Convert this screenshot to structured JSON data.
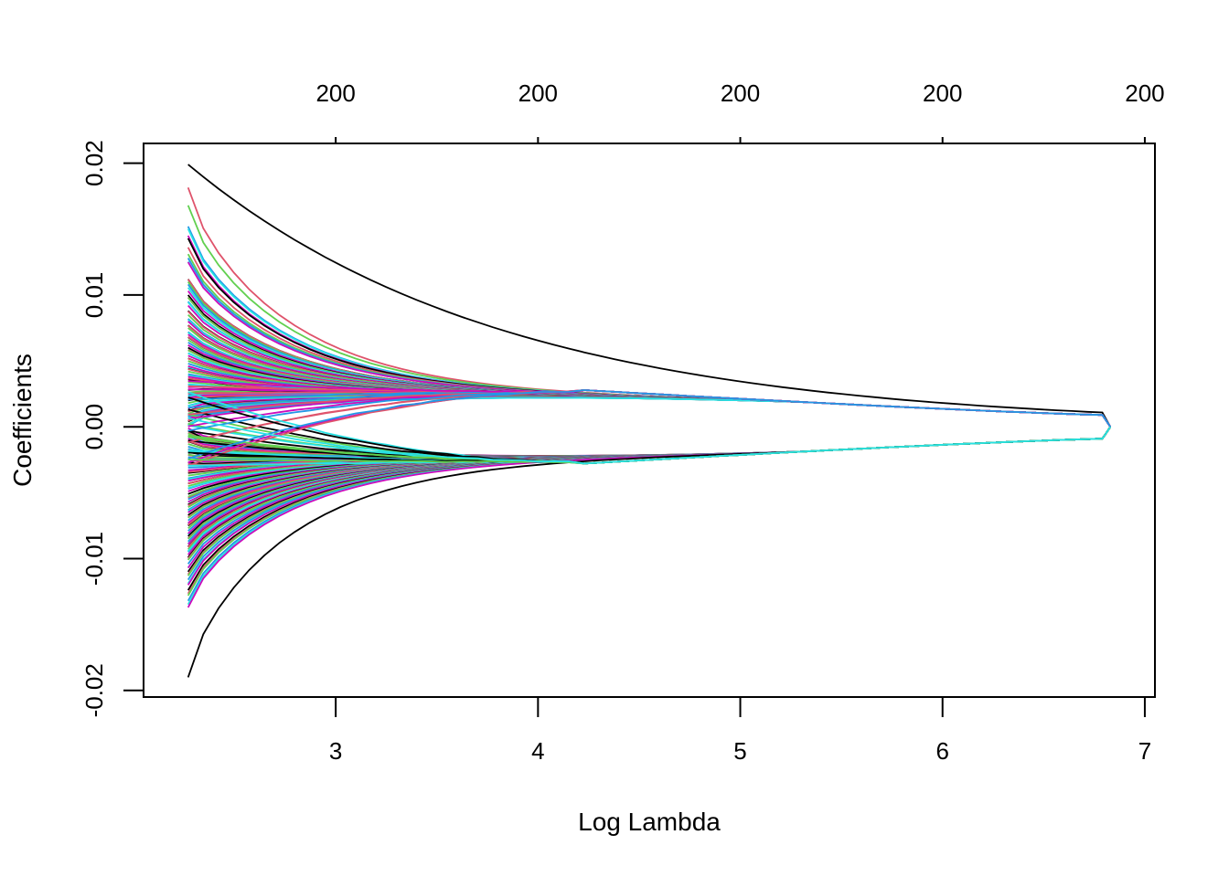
{
  "chart_data": {
    "type": "line",
    "title": "",
    "xlabel": "Log Lambda",
    "ylabel": "Coefficients",
    "xlim": [
      2.05,
      7.05
    ],
    "ylim": [
      -0.0205,
      0.0215
    ],
    "x_ticks": [
      "3",
      "4",
      "5",
      "6",
      "7"
    ],
    "x_tick_values": [
      3,
      4,
      5,
      6,
      7
    ],
    "y_ticks": [
      "-0.02",
      "-0.01",
      "0.00",
      "0.01",
      "0.02"
    ],
    "y_tick_values": [
      -0.02,
      -0.01,
      0.0,
      0.01,
      0.02
    ],
    "top_ticks": [
      "200",
      "200",
      "200",
      "200",
      "200"
    ],
    "top_tick_values": [
      3,
      4,
      5,
      6,
      7
    ],
    "grid": false,
    "legend": "none",
    "x_range_of_paths": [
      2.27,
      6.83
    ],
    "palette": [
      "#000000",
      "#DF536B",
      "#61D04F",
      "#2297E6",
      "#28E2E5",
      "#CD0BBC"
    ],
    "paths_summary": {
      "count": 200,
      "start_coefficients_at_min_log_lambda": [
        0.0199,
        0.0168,
        0.0152,
        0.0145,
        0.0143,
        0.0131,
        0.0128,
        0.0125,
        0.0112,
        0.011,
        0.0108,
        0.0103,
        0.01,
        0.0098,
        0.0095,
        0.0092,
        0.0088,
        0.0085,
        0.0082,
        0.008,
        0.0077,
        0.0075,
        0.0072,
        0.007,
        0.0068,
        0.0066,
        0.0064,
        0.0062,
        0.006,
        0.0058,
        0.0056,
        0.0054,
        0.0052,
        0.005,
        0.0048,
        0.0046,
        0.0044,
        0.0042,
        0.004,
        0.0038,
        0.0036,
        0.0034,
        0.0032,
        0.003,
        0.0028,
        0.0026,
        0.0024,
        0.0022,
        0.002,
        0.0018,
        0.0016,
        0.0014,
        0.0012,
        0.001,
        0.0008,
        0.0006,
        0.0004,
        0.0002,
        0.0001,
        -0.0001,
        -0.0003,
        -0.0005,
        -0.0007,
        -0.0009,
        -0.0011,
        -0.0013,
        -0.0015,
        -0.0017,
        -0.0019,
        -0.0021,
        -0.0023,
        -0.0025,
        -0.0027,
        -0.0029,
        -0.0031,
        -0.0033,
        -0.0035,
        -0.0037,
        -0.0039,
        -0.0041,
        -0.0043,
        -0.0045,
        -0.0047,
        -0.0049,
        -0.0051,
        -0.0053,
        -0.0055,
        -0.0057,
        -0.0059,
        -0.0061,
        -0.0063,
        -0.0065,
        -0.0067,
        -0.0069,
        -0.0071,
        -0.0073,
        -0.0075,
        -0.0077,
        -0.0079,
        -0.0081,
        -0.0083,
        -0.0085,
        -0.0087,
        -0.0089,
        -0.0091,
        -0.0093,
        -0.0095,
        -0.0097,
        -0.0099,
        -0.0101,
        -0.0104,
        -0.0107,
        -0.011,
        -0.0113,
        -0.0116,
        -0.012,
        -0.0124,
        -0.0128,
        -0.0132,
        -0.0137,
        -0.019
      ],
      "end_coefficients_at_max_log_lambda": [
        0.0009,
        -0.0009
      ]
    }
  }
}
